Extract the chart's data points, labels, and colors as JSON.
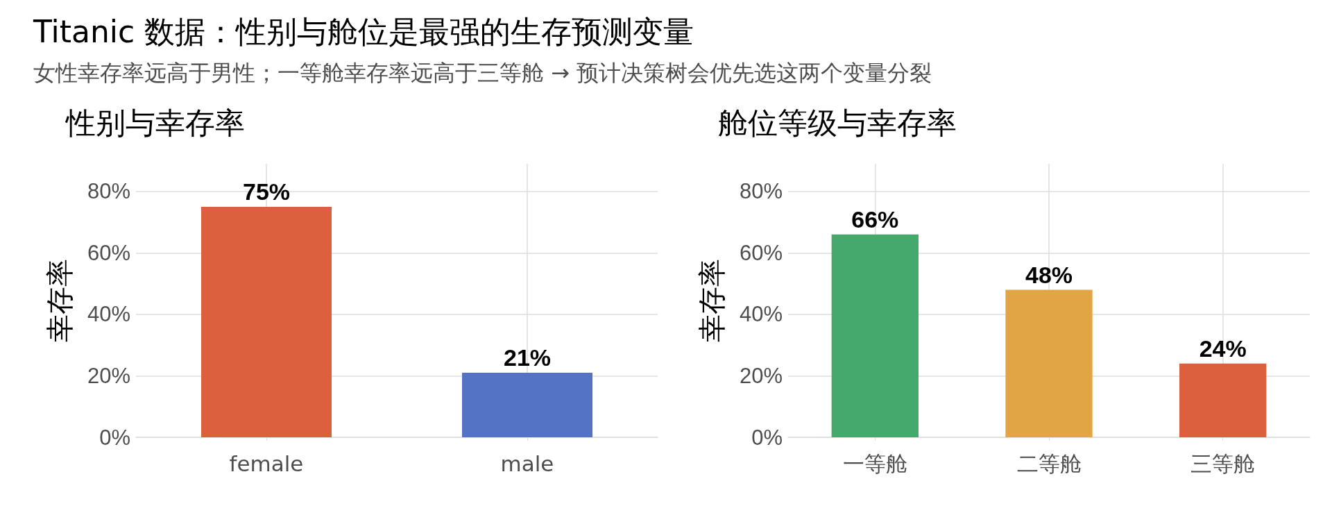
{
  "chart_data": [
    {
      "type": "other",
      "title": "Titanic 数据：性别与舱位是最强的生存预测变量",
      "subtitle": "女性幸存率远高于男性；一等舱幸存率远高于三等舱 → 预计决策树会优先选这两个变量分裂"
    },
    {
      "type": "bar",
      "title": "性别与幸存率",
      "ylabel": "幸存率",
      "categories": [
        "female",
        "male"
      ],
      "values": [
        75,
        21
      ],
      "colors": [
        "#dc5f3e",
        "#5473c4"
      ],
      "value_labels": [
        "75%",
        "21%"
      ],
      "ylim": [
        0,
        89
      ],
      "yticks": [
        {
          "value": 0,
          "label": "0%"
        },
        {
          "value": 20,
          "label": "20%"
        },
        {
          "value": 40,
          "label": "40%"
        },
        {
          "value": 60,
          "label": "60%"
        },
        {
          "value": 80,
          "label": "80%"
        }
      ],
      "grid": true
    },
    {
      "type": "bar",
      "title": "舱位等级与幸存率",
      "ylabel": "幸存率",
      "categories": [
        "一等舱",
        "二等舱",
        "三等舱"
      ],
      "values": [
        66,
        48,
        24
      ],
      "colors": [
        "#45a96c",
        "#e2a546",
        "#dc5f3e"
      ],
      "value_labels": [
        "66%",
        "48%",
        "24%"
      ],
      "ylim": [
        0,
        89
      ],
      "yticks": [
        {
          "value": 0,
          "label": "0%"
        },
        {
          "value": 20,
          "label": "20%"
        },
        {
          "value": 40,
          "label": "40%"
        },
        {
          "value": 60,
          "label": "60%"
        },
        {
          "value": 80,
          "label": "80%"
        }
      ],
      "grid": true
    }
  ]
}
